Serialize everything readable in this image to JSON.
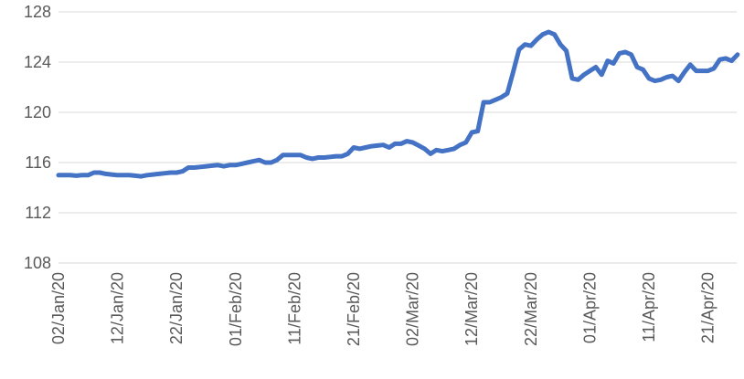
{
  "chart_data": {
    "type": "line",
    "categories": [
      "02/Jan/20",
      null,
      null,
      null,
      null,
      null,
      null,
      null,
      null,
      null,
      "12/Jan/20",
      null,
      null,
      null,
      null,
      null,
      null,
      null,
      null,
      null,
      "22/Jan/20",
      null,
      null,
      null,
      null,
      null,
      null,
      null,
      null,
      null,
      "01/Feb/20",
      null,
      null,
      null,
      null,
      null,
      null,
      null,
      null,
      null,
      "11/Feb/20",
      null,
      null,
      null,
      null,
      null,
      null,
      null,
      null,
      null,
      "21/Feb/20",
      null,
      null,
      null,
      null,
      null,
      null,
      null,
      null,
      null,
      "02/Mar/20",
      null,
      null,
      null,
      null,
      null,
      null,
      null,
      null,
      null,
      "12/Mar/20",
      null,
      null,
      null,
      null,
      null,
      null,
      null,
      null,
      null,
      "22/Mar/20",
      null,
      null,
      null,
      null,
      null,
      null,
      null,
      null,
      null,
      "01/Apr/20",
      null,
      null,
      null,
      null,
      null,
      null,
      null,
      null,
      null,
      "11/Apr/20",
      null,
      null,
      null,
      null,
      null,
      null,
      null,
      null,
      null,
      "21/Apr/20",
      null,
      null,
      null,
      null,
      null
    ],
    "series": [
      {
        "color": "#4472c4",
        "values": [
          115.0,
          115.0,
          115.0,
          114.95,
          115.0,
          115.0,
          115.2,
          115.2,
          115.1,
          115.05,
          115.0,
          115.0,
          115.0,
          114.95,
          114.9,
          115.0,
          115.05,
          115.1,
          115.15,
          115.2,
          115.2,
          115.3,
          115.6,
          115.6,
          115.65,
          115.7,
          115.75,
          115.8,
          115.7,
          115.8,
          115.8,
          115.9,
          116.0,
          116.1,
          116.2,
          116.0,
          116.0,
          116.2,
          116.6,
          116.6,
          116.6,
          116.6,
          116.4,
          116.3,
          116.4,
          116.4,
          116.45,
          116.5,
          116.5,
          116.7,
          117.2,
          117.1,
          117.2,
          117.3,
          117.35,
          117.4,
          117.2,
          117.5,
          117.5,
          117.7,
          117.6,
          117.35,
          117.1,
          116.7,
          117.0,
          116.9,
          117.0,
          117.1,
          117.4,
          117.6,
          118.4,
          118.5,
          120.8,
          120.8,
          121.0,
          121.2,
          121.5,
          123.2,
          125.0,
          125.4,
          125.3,
          125.8,
          126.2,
          126.4,
          126.2,
          125.4,
          124.9,
          122.7,
          122.6,
          123.0,
          123.3,
          123.6,
          123.0,
          124.1,
          123.9,
          124.7,
          124.8,
          124.6,
          123.6,
          123.4,
          122.7,
          122.5,
          122.6,
          122.8,
          122.9,
          122.5,
          123.2,
          123.8,
          123.3,
          123.3,
          123.3,
          123.5,
          124.2,
          124.3,
          124.1,
          124.6
        ]
      }
    ],
    "ylim": [
      108,
      128
    ],
    "yticks": [
      108,
      112,
      116,
      120,
      124,
      128
    ],
    "grid": true
  }
}
